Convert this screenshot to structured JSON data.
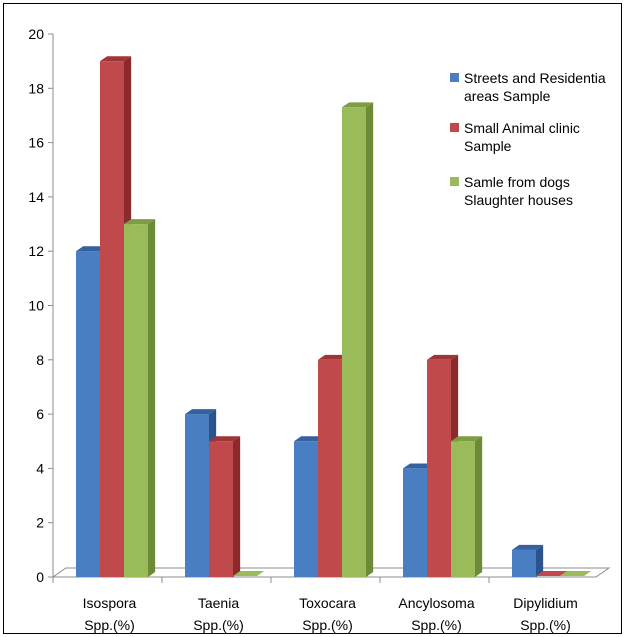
{
  "chart_data": {
    "type": "bar",
    "categories": [
      [
        "Isospora",
        "Spp.(%)"
      ],
      [
        "Taenia",
        "Spp.(%)"
      ],
      [
        "Toxocara",
        "Spp.(%)"
      ],
      [
        "Ancylosoma",
        "Spp.(%)"
      ],
      [
        "Dipylidium",
        "Spp.(%)"
      ]
    ],
    "series": [
      {
        "name": [
          "Streets and Residentia",
          "areas Sample"
        ],
        "color": "#4A7EC2",
        "side": "#2C548A",
        "top": "#35629F",
        "values": [
          12,
          6,
          5,
          4,
          1
        ]
      },
      {
        "name": [
          "Small Animal clinic",
          "Sample"
        ],
        "color": "#C0494B",
        "side": "#8A2A2C",
        "top": "#9F3537",
        "values": [
          19,
          5,
          8,
          8,
          0
        ]
      },
      {
        "name": [
          "Samle from dogs",
          "Slaughter houses"
        ],
        "color": "#9ABB59",
        "side": "#6D8A37",
        "top": "#7F9E43",
        "values": [
          13,
          0,
          17.3,
          5,
          0
        ]
      }
    ],
    "ylim": [
      0,
      20
    ],
    "yticks": [
      0,
      2,
      4,
      6,
      8,
      10,
      12,
      14,
      16,
      18,
      20
    ],
    "grid": false,
    "legend_position": "right"
  }
}
